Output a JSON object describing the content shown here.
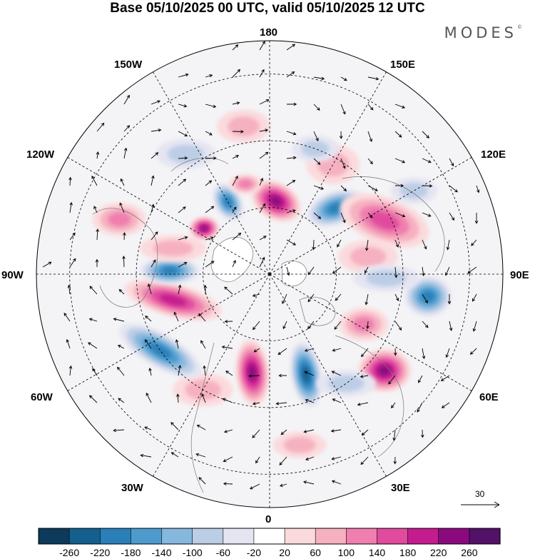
{
  "title": "Base 05/10/2025 00 UTC, valid 05/10/2025 12 UTC",
  "brand": {
    "name": "MODES",
    "mark": "©"
  },
  "longitudes": {
    "top": "180",
    "bottom": "0",
    "left": "90W",
    "right": "90E",
    "upper_left": "150W",
    "upper_right": "150E",
    "mid_upper_left": "120W",
    "mid_upper_right": "120E",
    "mid_lower_left": "60W",
    "mid_lower_right": "60E",
    "lower_left": "30W",
    "lower_right": "30E"
  },
  "reference_vector": {
    "value": "30"
  },
  "colorbar": {
    "labels": [
      "-260",
      "-220",
      "-180",
      "-140",
      "-100",
      "-60",
      "-20",
      "20",
      "60",
      "100",
      "140",
      "180",
      "220",
      "260"
    ],
    "colors": [
      "#0d3a5a",
      "#135f8e",
      "#2a7fb8",
      "#4d9bcd",
      "#86b7dd",
      "#bccde6",
      "#e4e5f1",
      "#ffffff",
      "#fbdadd",
      "#f6b1c0",
      "#ef7fae",
      "#e04b9e",
      "#c41c8e",
      "#8a0a7e",
      "#521067"
    ]
  },
  "anomalies": [
    {
      "lon": 175,
      "colat": 22,
      "value": 230,
      "rx": 16,
      "ry": 11,
      "rot": 30
    },
    {
      "lon": 150,
      "colat": 38,
      "value": 60,
      "rx": 16,
      "ry": 12,
      "rot": 0
    },
    {
      "lon": 135,
      "colat": 28,
      "value": -200,
      "rx": 18,
      "ry": 10,
      "rot": -20
    },
    {
      "lon": 160,
      "colat": 40,
      "value": -60,
      "rx": 14,
      "ry": 8,
      "rot": 0
    },
    {
      "lon": 115,
      "colat": 38,
      "value": 140,
      "rx": 28,
      "ry": 14,
      "rot": 20
    },
    {
      "lon": 100,
      "colat": 30,
      "value": 60,
      "rx": 18,
      "ry": 10,
      "rot": 0
    },
    {
      "lon": 82,
      "colat": 48,
      "value": -200,
      "rx": 14,
      "ry": 12,
      "rot": 0
    },
    {
      "lon": 88,
      "colat": 35,
      "value": -60,
      "rx": 20,
      "ry": 8,
      "rot": 0
    },
    {
      "lon": 50,
      "colat": 45,
      "value": 220,
      "rx": 16,
      "ry": 13,
      "rot": 0
    },
    {
      "lon": 62,
      "colat": 32,
      "value": 100,
      "rx": 15,
      "ry": 10,
      "rot": 0
    },
    {
      "lon": 20,
      "colat": 32,
      "value": -250,
      "rx": 20,
      "ry": 9,
      "rot": 80
    },
    {
      "lon": 35,
      "colat": 40,
      "value": -60,
      "rx": 18,
      "ry": 8,
      "rot": 0
    },
    {
      "lon": 350,
      "colat": 30,
      "value": 220,
      "rx": 20,
      "ry": 10,
      "rot": 85
    },
    {
      "lon": 330,
      "colat": 40,
      "value": 60,
      "rx": 18,
      "ry": 10,
      "rot": 0
    },
    {
      "lon": 305,
      "colat": 40,
      "value": -190,
      "rx": 28,
      "ry": 10,
      "rot": 30
    },
    {
      "lon": 285,
      "colat": 30,
      "value": 200,
      "rx": 30,
      "ry": 10,
      "rot": 15
    },
    {
      "lon": 268,
      "colat": 30,
      "value": -180,
      "rx": 18,
      "ry": 8,
      "rot": 0
    },
    {
      "lon": 255,
      "colat": 30,
      "value": 60,
      "rx": 20,
      "ry": 8,
      "rot": 0
    },
    {
      "lon": 235,
      "colat": 24,
      "value": 220,
      "rx": 9,
      "ry": 7,
      "rot": 0
    },
    {
      "lon": 210,
      "colat": 25,
      "value": -200,
      "rx": 12,
      "ry": 8,
      "rot": 60
    },
    {
      "lon": 215,
      "colat": 44,
      "value": -60,
      "rx": 18,
      "ry": 9,
      "rot": 0
    },
    {
      "lon": 190,
      "colat": 45,
      "value": 60,
      "rx": 16,
      "ry": 10,
      "rot": 0
    },
    {
      "lon": 195,
      "colat": 28,
      "value": 100,
      "rx": 10,
      "ry": 6,
      "rot": 0
    },
    {
      "lon": 250,
      "colat": 48,
      "value": 100,
      "rx": 16,
      "ry": 10,
      "rot": 0
    },
    {
      "lon": 120,
      "colat": 50,
      "value": -60,
      "rx": 14,
      "ry": 8,
      "rot": 0
    },
    {
      "lon": 10,
      "colat": 52,
      "value": 60,
      "rx": 16,
      "ry": 8,
      "rot": 0
    }
  ]
}
